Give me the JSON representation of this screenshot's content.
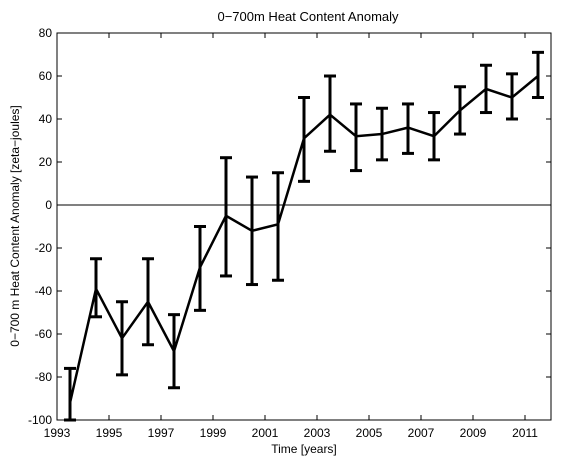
{
  "chart_data": {
    "type": "line",
    "title": "0−700m Heat Content Anomaly",
    "xlabel": "Time [years]",
    "ylabel": "0−700 m Heat Content Anomaly [zeta−joules]",
    "xlim": [
      1993,
      2012
    ],
    "ylim": [
      -100,
      80
    ],
    "x_ticks": [
      1993,
      1995,
      1997,
      1999,
      2001,
      2003,
      2005,
      2007,
      2009,
      2011
    ],
    "y_ticks": [
      -100,
      -80,
      -60,
      -40,
      -20,
      0,
      20,
      40,
      60,
      80
    ],
    "zero_line": true,
    "grid": false,
    "series": [
      {
        "x": [
          1993.5,
          1994.5,
          1995.5,
          1996.5,
          1997.5,
          1998.5,
          1999.5,
          2000.5,
          2001.5,
          2002.5,
          2003.5,
          2004.5,
          2005.5,
          2006.5,
          2007.5,
          2008.5,
          2009.5,
          2010.5,
          2011.5
        ],
        "y": [
          -92,
          -39,
          -62,
          -45,
          -68,
          -29,
          -5,
          -12,
          -9,
          31,
          42,
          32,
          33,
          36,
          32,
          44,
          54,
          50,
          60
        ],
        "err_low": [
          -100,
          -52,
          -79,
          -65,
          -85,
          -49,
          -33,
          -37,
          -35,
          11,
          25,
          16,
          21,
          24,
          21,
          33,
          43,
          40,
          50
        ],
        "err_high": [
          -76,
          -25,
          -45,
          -25,
          -51,
          -10,
          22,
          13,
          15,
          50,
          60,
          47,
          45,
          47,
          43,
          55,
          65,
          61,
          71
        ]
      }
    ],
    "color": "#000000"
  }
}
